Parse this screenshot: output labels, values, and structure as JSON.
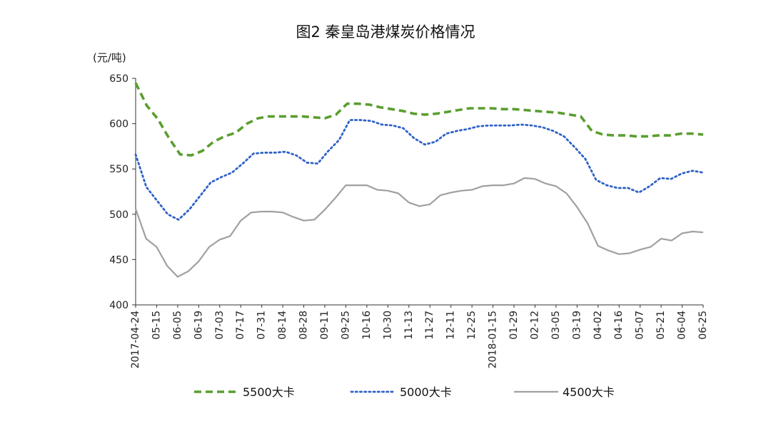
{
  "chart_data": {
    "type": "line",
    "title": "图2 秦皇岛港煤炭价格情况",
    "unit_label": "(元/吨)",
    "ylim": [
      400,
      650
    ],
    "yticks": [
      400,
      450,
      500,
      550,
      600,
      650
    ],
    "grid": false,
    "legend_position": "bottom",
    "x_tick_labels": [
      "2017-04-24",
      "05-15",
      "06-05",
      "06-19",
      "07-03",
      "07-17",
      "07-31",
      "08-14",
      "08-28",
      "09-11",
      "09-25",
      "10-16",
      "10-30",
      "11-13",
      "11-27",
      "12-11",
      "12-25",
      "2018-01-15",
      "01-29",
      "02-12",
      "03-05",
      "03-19",
      "04-02",
      "04-16",
      "05-07",
      "05-21",
      "06-04",
      "06-25"
    ],
    "series": [
      {
        "name": "5500大卡",
        "color": "#5a9e2f",
        "style": "dashed",
        "values": [
          645,
          620,
          605,
          584,
          566,
          565,
          570,
          580,
          586,
          590,
          600,
          606,
          608,
          608,
          608,
          608,
          607,
          606,
          610,
          622,
          622,
          621,
          618,
          616,
          614,
          611,
          610,
          611,
          613,
          615,
          617,
          617,
          617,
          616,
          616,
          615,
          614,
          613,
          612,
          610,
          608,
          592,
          588,
          587,
          587,
          586,
          586,
          587,
          587,
          589,
          589,
          588
        ]
      },
      {
        "name": "5000大卡",
        "color": "#2f62c8",
        "style": "dotted",
        "values": [
          566,
          530,
          515,
          500,
          494,
          505,
          520,
          535,
          541,
          546,
          556,
          567,
          568,
          568,
          569,
          565,
          557,
          556,
          570,
          582,
          604,
          604,
          603,
          599,
          598,
          595,
          584,
          577,
          580,
          589,
          592,
          594,
          597,
          598,
          598,
          598,
          599,
          598,
          596,
          592,
          586,
          574,
          561,
          538,
          532,
          529,
          529,
          524,
          531,
          540,
          539,
          545,
          548,
          546
        ]
      },
      {
        "name": "4500大卡",
        "color": "#a0a0a0",
        "style": "solid",
        "values": [
          506,
          473,
          464,
          443,
          431,
          437,
          448,
          464,
          472,
          476,
          493,
          502,
          503,
          503,
          502,
          497,
          493,
          494,
          505,
          518,
          532,
          532,
          532,
          527,
          526,
          523,
          513,
          509,
          511,
          521,
          524,
          526,
          527,
          531,
          532,
          532,
          534,
          540,
          539,
          534,
          531,
          523,
          508,
          490,
          465,
          460,
          456,
          457,
          461,
          464,
          473,
          471,
          479,
          481,
          480
        ]
      }
    ]
  }
}
